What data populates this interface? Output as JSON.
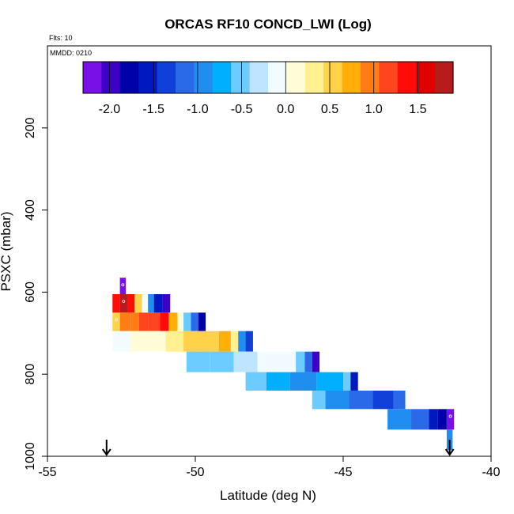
{
  "chart_data": {
    "type": "heatmap",
    "title": "ORCAS RF10 CONCD_LWI (Log)",
    "flights_note": "Flts: 10",
    "date_note": "MMDD: 0210",
    "xlabel": "Latitude (deg N)",
    "ylabel": "PSXC (mbar)",
    "xlim": [
      -55,
      -40
    ],
    "ylim": [
      1000,
      0
    ],
    "xticks": [
      -55,
      -50,
      -45,
      -40
    ],
    "xtick_labels": [
      "-55",
      "-50",
      "-45",
      "-40"
    ],
    "yticks": [
      200,
      400,
      600,
      800,
      1000
    ],
    "ytick_labels": [
      "200",
      "400",
      "600",
      "800",
      "1000"
    ],
    "grid": false,
    "colorbar": {
      "ticks": [
        -2.0,
        -1.5,
        -1.0,
        -0.5,
        0.0,
        0.5,
        1.0,
        1.5
      ],
      "tick_labels": [
        "-2.0",
        "-1.5",
        "-1.0",
        "-0.5",
        "0.0",
        "0.5",
        "1.0",
        "1.5"
      ],
      "range": [
        -2.3,
        1.9
      ],
      "colors": [
        "#7a10e8",
        "#3c00c8",
        "#0000a8",
        "#0018c0",
        "#1040d8",
        "#2a6ae8",
        "#1f8ef0",
        "#00b0ff",
        "#6ccbff",
        "#bfe4ff",
        "#f2fbff",
        "#fffcd8",
        "#fff090",
        "#ffd24a",
        "#ffae0a",
        "#ff7d14",
        "#ff4520",
        "#ff0c08",
        "#e00000",
        "#b81b1b"
      ]
    },
    "arrows": [
      {
        "x": -53.0,
        "direction": "down"
      },
      {
        "x": -41.4,
        "direction": "down"
      }
    ],
    "cells": [
      {
        "x0": -52.55,
        "x1": -52.35,
        "y0": 565,
        "y1": 605,
        "v": -2.3,
        "mark": true
      },
      {
        "x0": -52.8,
        "x1": -52.55,
        "y0": 605,
        "y1": 650,
        "v": 1.4,
        "mark": false
      },
      {
        "x0": -52.55,
        "x1": -52.3,
        "y0": 605,
        "y1": 650,
        "v": 1.7,
        "mark": true
      },
      {
        "x0": -52.3,
        "x1": -52.05,
        "y0": 605,
        "y1": 650,
        "v": 1.3,
        "mark": false
      },
      {
        "x0": -52.05,
        "x1": -51.8,
        "y0": 605,
        "y1": 650,
        "v": 0.6,
        "mark": false
      },
      {
        "x0": -51.8,
        "x1": -51.6,
        "y0": 605,
        "y1": 650,
        "v": -0.2,
        "mark": false
      },
      {
        "x0": -51.6,
        "x1": -51.4,
        "y0": 605,
        "y1": 650,
        "v": -1.0,
        "mark": false
      },
      {
        "x0": -51.4,
        "x1": -51.1,
        "y0": 605,
        "y1": 650,
        "v": -1.5,
        "mark": false
      },
      {
        "x0": -51.1,
        "x1": -50.85,
        "y0": 605,
        "y1": 650,
        "v": -1.9,
        "mark": false
      },
      {
        "x0": -52.8,
        "x1": -52.55,
        "y0": 650,
        "y1": 695,
        "v": 0.6,
        "mark": true
      },
      {
        "x0": -52.55,
        "x1": -52.2,
        "y0": 650,
        "y1": 695,
        "v": 1.0,
        "mark": false
      },
      {
        "x0": -52.2,
        "x1": -51.9,
        "y0": 650,
        "y1": 695,
        "v": 1.05,
        "mark": false
      },
      {
        "x0": -51.9,
        "x1": -51.6,
        "y0": 650,
        "y1": 695,
        "v": 1.1,
        "mark": false
      },
      {
        "x0": -51.6,
        "x1": -51.2,
        "y0": 650,
        "y1": 695,
        "v": 1.2,
        "mark": false
      },
      {
        "x0": -51.2,
        "x1": -50.9,
        "y0": 650,
        "y1": 695,
        "v": 1.3,
        "mark": false
      },
      {
        "x0": -50.9,
        "x1": -50.6,
        "y0": 650,
        "y1": 695,
        "v": 0.8,
        "mark": false
      },
      {
        "x0": -50.6,
        "x1": -50.4,
        "y0": 650,
        "y1": 695,
        "v": 0.2,
        "mark": false
      },
      {
        "x0": -50.4,
        "x1": -50.15,
        "y0": 650,
        "y1": 695,
        "v": -0.5,
        "mark": false
      },
      {
        "x0": -50.15,
        "x1": -49.9,
        "y0": 650,
        "y1": 695,
        "v": -1.1,
        "mark": false
      },
      {
        "x0": -49.9,
        "x1": -49.65,
        "y0": 650,
        "y1": 695,
        "v": -1.8,
        "mark": false
      },
      {
        "x0": -52.8,
        "x1": -52.2,
        "y0": 695,
        "y1": 745,
        "v": -0.05,
        "mark": false
      },
      {
        "x0": -52.2,
        "x1": -51.6,
        "y0": 695,
        "y1": 745,
        "v": 0.05,
        "mark": false
      },
      {
        "x0": -51.6,
        "x1": -51.0,
        "y0": 695,
        "y1": 745,
        "v": 0.15,
        "mark": false
      },
      {
        "x0": -51.0,
        "x1": -50.4,
        "y0": 695,
        "y1": 745,
        "v": 0.3,
        "mark": false
      },
      {
        "x0": -50.4,
        "x1": -49.8,
        "y0": 695,
        "y1": 745,
        "v": 0.45,
        "mark": false
      },
      {
        "x0": -49.8,
        "x1": -49.2,
        "y0": 695,
        "y1": 745,
        "v": 0.55,
        "mark": false
      },
      {
        "x0": -49.2,
        "x1": -48.8,
        "y0": 695,
        "y1": 745,
        "v": 0.7,
        "mark": false
      },
      {
        "x0": -48.8,
        "x1": -48.55,
        "y0": 695,
        "y1": 745,
        "v": 0.3,
        "mark": false
      },
      {
        "x0": -48.55,
        "x1": -48.3,
        "y0": 695,
        "y1": 745,
        "v": -0.9,
        "mark": false
      },
      {
        "x0": -48.3,
        "x1": -48.05,
        "y0": 695,
        "y1": 745,
        "v": -1.4,
        "mark": false
      },
      {
        "x0": -50.3,
        "x1": -49.5,
        "y0": 745,
        "y1": 795,
        "v": -0.6,
        "mark": false
      },
      {
        "x0": -49.5,
        "x1": -48.7,
        "y0": 745,
        "y1": 795,
        "v": -0.45,
        "mark": false
      },
      {
        "x0": -48.7,
        "x1": -47.9,
        "y0": 745,
        "y1": 795,
        "v": -0.35,
        "mark": false
      },
      {
        "x0": -47.9,
        "x1": -47.3,
        "y0": 745,
        "y1": 795,
        "v": -0.2,
        "mark": false
      },
      {
        "x0": -47.3,
        "x1": -46.6,
        "y0": 745,
        "y1": 795,
        "v": -0.05,
        "mark": false
      },
      {
        "x0": -46.6,
        "x1": -46.3,
        "y0": 745,
        "y1": 795,
        "v": -0.6,
        "mark": false
      },
      {
        "x0": -46.3,
        "x1": -46.05,
        "y0": 745,
        "y1": 795,
        "v": -1.2,
        "mark": false
      },
      {
        "x0": -46.05,
        "x1": -45.8,
        "y0": 745,
        "y1": 795,
        "v": -2.0,
        "mark": false
      },
      {
        "x0": -48.3,
        "x1": -47.6,
        "y0": 795,
        "y1": 840,
        "v": -0.6,
        "mark": false
      },
      {
        "x0": -47.6,
        "x1": -46.8,
        "y0": 795,
        "y1": 840,
        "v": -0.8,
        "mark": false
      },
      {
        "x0": -46.8,
        "x1": -45.9,
        "y0": 795,
        "y1": 840,
        "v": -0.9,
        "mark": false
      },
      {
        "x0": -45.9,
        "x1": -45.0,
        "y0": 795,
        "y1": 840,
        "v": -0.75,
        "mark": false
      },
      {
        "x0": -45.0,
        "x1": -44.75,
        "y0": 795,
        "y1": 840,
        "v": -0.5,
        "mark": false
      },
      {
        "x0": -44.75,
        "x1": -44.5,
        "y0": 795,
        "y1": 840,
        "v": -1.5,
        "mark": false
      },
      {
        "x0": -46.05,
        "x1": -45.6,
        "y0": 840,
        "y1": 885,
        "v": -0.55,
        "mark": false
      },
      {
        "x0": -45.6,
        "x1": -44.8,
        "y0": 840,
        "y1": 885,
        "v": -0.95,
        "mark": false
      },
      {
        "x0": -44.8,
        "x1": -44.0,
        "y0": 840,
        "y1": 885,
        "v": -1.15,
        "mark": false
      },
      {
        "x0": -44.0,
        "x1": -43.3,
        "y0": 840,
        "y1": 885,
        "v": -1.3,
        "mark": false
      },
      {
        "x0": -43.3,
        "x1": -42.9,
        "y0": 840,
        "y1": 885,
        "v": -1.1,
        "mark": false
      },
      {
        "x0": -43.5,
        "x1": -42.7,
        "y0": 885,
        "y1": 935,
        "v": -0.9,
        "mark": false
      },
      {
        "x0": -42.7,
        "x1": -42.1,
        "y0": 885,
        "y1": 935,
        "v": -1.2,
        "mark": false
      },
      {
        "x0": -42.1,
        "x1": -41.8,
        "y0": 885,
        "y1": 935,
        "v": -1.5,
        "mark": false
      },
      {
        "x0": -41.8,
        "x1": -41.5,
        "y0": 885,
        "y1": 935,
        "v": -1.8,
        "mark": false
      },
      {
        "x0": -41.5,
        "x1": -41.25,
        "y0": 885,
        "y1": 935,
        "v": -2.1,
        "mark": true
      },
      {
        "x0": -41.5,
        "x1": -41.3,
        "y0": 935,
        "y1": 985,
        "v": -1.0,
        "mark": false
      }
    ]
  }
}
